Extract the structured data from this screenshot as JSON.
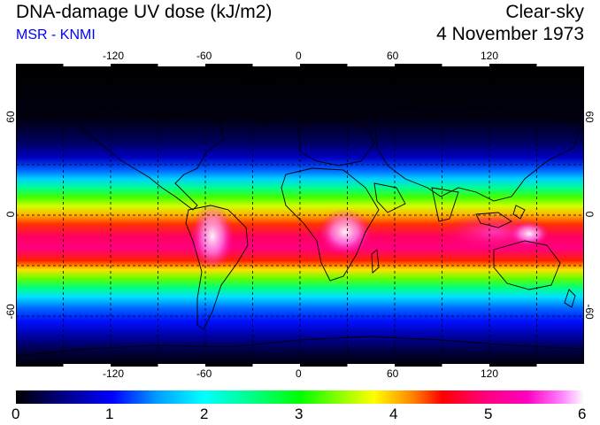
{
  "header": {
    "title": "DNA-damage UV dose (kJ/m2)",
    "subtitle": "MSR - KNMI",
    "condition": "Clear-sky",
    "date": "4 November 1973"
  },
  "map": {
    "lon_ticks": [
      "-120",
      "-60",
      "0",
      "60",
      "120"
    ],
    "lat_ticks": [
      "60",
      "0",
      "-60"
    ],
    "lon_range": [
      -180,
      180
    ],
    "lat_range": [
      -90,
      90
    ],
    "grid": true,
    "grid_style": "dashed"
  },
  "colorbar": {
    "labels": [
      "0",
      "1",
      "2",
      "3",
      "4",
      "5",
      "6"
    ],
    "range": [
      0,
      6
    ],
    "colors": [
      "#000000",
      "#000080",
      "#0000ff",
      "#00a0ff",
      "#00ffff",
      "#00ff80",
      "#00ff00",
      "#a0ff00",
      "#ffff00",
      "#ff8000",
      "#ff0000",
      "#ff0080",
      "#ff00c0",
      "#ff80ff",
      "#ffffff"
    ]
  }
}
